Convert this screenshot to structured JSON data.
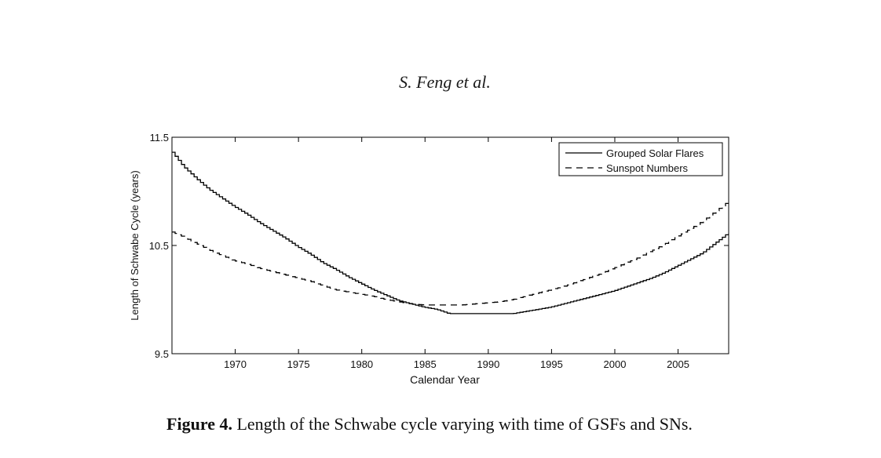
{
  "header": {
    "authors": "S. Feng et al."
  },
  "caption": {
    "label": "Figure 4.",
    "text": " Length of the Schwabe cycle varying with time of GSFs and SNs."
  },
  "chart_data": {
    "type": "line",
    "title": "",
    "xlabel": "Calendar Year",
    "ylabel": "Length of Schwabe Cycle (years)",
    "xlim": [
      1965,
      2009
    ],
    "ylim": [
      9.5,
      11.5
    ],
    "xticks": [
      1970,
      1975,
      1980,
      1985,
      1990,
      1995,
      2000,
      2005
    ],
    "yticks": [
      9.5,
      10.5,
      11.5
    ],
    "yticklabels": [
      "9.5",
      "10.5",
      "11.5"
    ],
    "legend_position": "top-right",
    "series": [
      {
        "name": "Grouped Solar Flares",
        "style": "solid",
        "x": [
          1965,
          1966,
          1967,
          1968,
          1969,
          1970,
          1971,
          1972,
          1973,
          1974,
          1975,
          1976,
          1977,
          1978,
          1979,
          1980,
          1981,
          1982,
          1983,
          1984,
          1985,
          1986,
          1987,
          1988,
          1989,
          1990,
          1991,
          1992,
          1993,
          1994,
          1995,
          1996,
          1997,
          1998,
          1999,
          2000,
          2001,
          2002,
          2003,
          2004,
          2005,
          2006,
          2007,
          2008,
          2009
        ],
        "values": [
          11.38,
          11.23,
          11.12,
          11.02,
          10.94,
          10.86,
          10.79,
          10.71,
          10.64,
          10.57,
          10.49,
          10.42,
          10.34,
          10.28,
          10.21,
          10.15,
          10.09,
          10.04,
          9.99,
          9.96,
          9.93,
          9.91,
          9.87,
          9.87,
          9.87,
          9.87,
          9.87,
          9.87,
          9.89,
          9.91,
          9.93,
          9.96,
          9.99,
          10.02,
          10.05,
          10.08,
          10.12,
          10.16,
          10.2,
          10.25,
          10.31,
          10.37,
          10.43,
          10.52,
          10.61
        ]
      },
      {
        "name": "Sunspot Numbers",
        "style": "dashed",
        "x": [
          1965,
          1966,
          1967,
          1968,
          1969,
          1970,
          1971,
          1972,
          1973,
          1974,
          1975,
          1976,
          1977,
          1978,
          1979,
          1980,
          1981,
          1982,
          1983,
          1984,
          1985,
          1986,
          1987,
          1988,
          1989,
          1990,
          1991,
          1992,
          1993,
          1994,
          1995,
          1996,
          1997,
          1998,
          1999,
          2000,
          2001,
          2002,
          2003,
          2004,
          2005,
          2006,
          2007,
          2008,
          2009
        ],
        "values": [
          10.63,
          10.58,
          10.52,
          10.46,
          10.41,
          10.36,
          10.33,
          10.29,
          10.26,
          10.23,
          10.2,
          10.17,
          10.13,
          10.09,
          10.07,
          10.05,
          10.03,
          10.0,
          9.98,
          9.96,
          9.95,
          9.95,
          9.95,
          9.95,
          9.96,
          9.97,
          9.98,
          10.0,
          10.03,
          10.06,
          10.09,
          10.12,
          10.16,
          10.2,
          10.24,
          10.29,
          10.34,
          10.39,
          10.45,
          10.51,
          10.58,
          10.65,
          10.72,
          10.81,
          10.9
        ]
      }
    ]
  }
}
